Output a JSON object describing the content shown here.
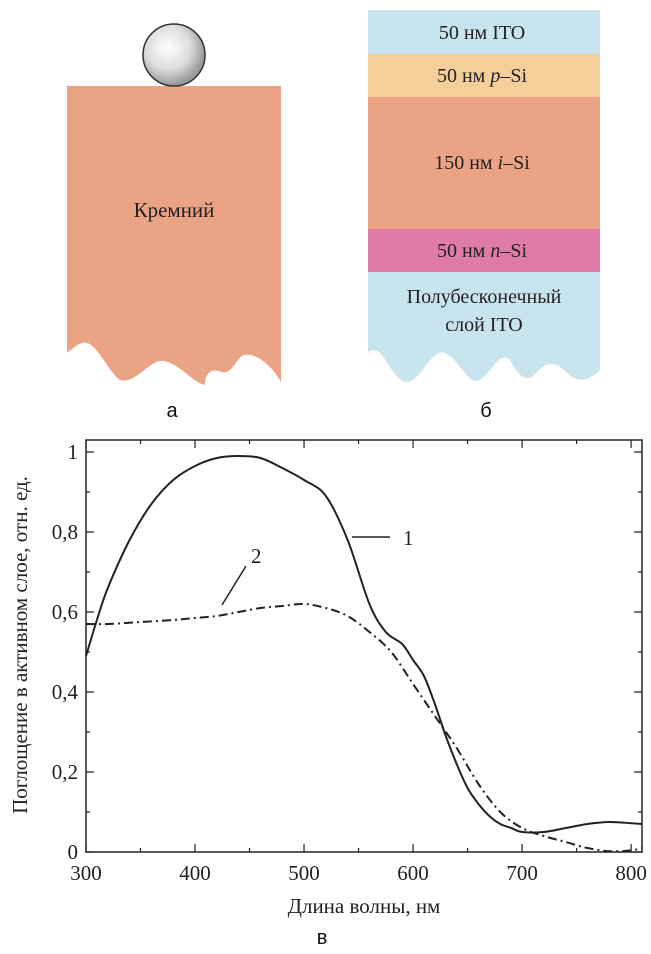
{
  "panel_a": {
    "label": "а",
    "substrate_text": "Кремний",
    "substrate_color": "#eba386",
    "particle_color": "#d8d8d8"
  },
  "panel_b": {
    "label": "б",
    "layers": [
      {
        "text": "50 нм ITO",
        "color": "#c8e5ef"
      },
      {
        "text": "50 нм p–Si",
        "color": "#f5cf9a"
      },
      {
        "text": "150 нм i–Si",
        "color": "#eba386"
      },
      {
        "text": "50 нм n–Si",
        "color": "#e07ba8"
      },
      {
        "text_line1": "Полубесконечный",
        "text_line2": "слой ITO",
        "color": "#c8e5ef"
      }
    ]
  },
  "panel_c": {
    "label": "в"
  },
  "chart_data": {
    "type": "line",
    "xlabel": "Длина волны, нм",
    "ylabel": "Поглощение в активном слое, отн. ед.",
    "xlim": [
      300,
      810
    ],
    "ylim": [
      0,
      1.03
    ],
    "xticks": [
      300,
      400,
      500,
      600,
      700,
      800
    ],
    "xtick_labels": [
      "300",
      "400",
      "500",
      "600",
      "700",
      "800"
    ],
    "yticks": [
      0,
      0.2,
      0.4,
      0.6,
      0.8,
      1.0
    ],
    "ytick_labels": [
      "0",
      "0,2",
      "0,4",
      "0,6",
      "0,8",
      "1"
    ],
    "series": [
      {
        "name": "1",
        "style": "solid",
        "x": [
          300,
          310,
          320,
          340,
          360,
          380,
          400,
          420,
          440,
          460,
          480,
          500,
          520,
          540,
          560,
          575,
          590,
          600,
          610,
          620,
          630,
          640,
          650,
          660,
          670,
          680,
          690,
          700,
          720,
          740,
          760,
          780,
          800,
          810
        ],
        "y": [
          0.49,
          0.58,
          0.66,
          0.78,
          0.87,
          0.93,
          0.965,
          0.985,
          0.99,
          0.985,
          0.96,
          0.93,
          0.89,
          0.78,
          0.62,
          0.55,
          0.52,
          0.48,
          0.44,
          0.37,
          0.29,
          0.22,
          0.16,
          0.12,
          0.09,
          0.07,
          0.06,
          0.05,
          0.05,
          0.06,
          0.07,
          0.075,
          0.072,
          0.07
        ]
      },
      {
        "name": "2",
        "style": "dashdot",
        "x": [
          300,
          320,
          350,
          380,
          400,
          420,
          440,
          460,
          480,
          500,
          520,
          540,
          560,
          580,
          600,
          620,
          640,
          660,
          680,
          700,
          720,
          740,
          760,
          780,
          800,
          810
        ],
        "y": [
          0.57,
          0.57,
          0.575,
          0.58,
          0.585,
          0.59,
          0.6,
          0.61,
          0.615,
          0.62,
          0.61,
          0.59,
          0.55,
          0.5,
          0.42,
          0.34,
          0.26,
          0.17,
          0.1,
          0.06,
          0.04,
          0.025,
          0.01,
          0.002,
          0.004,
          0.01
        ]
      }
    ],
    "annotations": [
      "1",
      "2"
    ]
  }
}
